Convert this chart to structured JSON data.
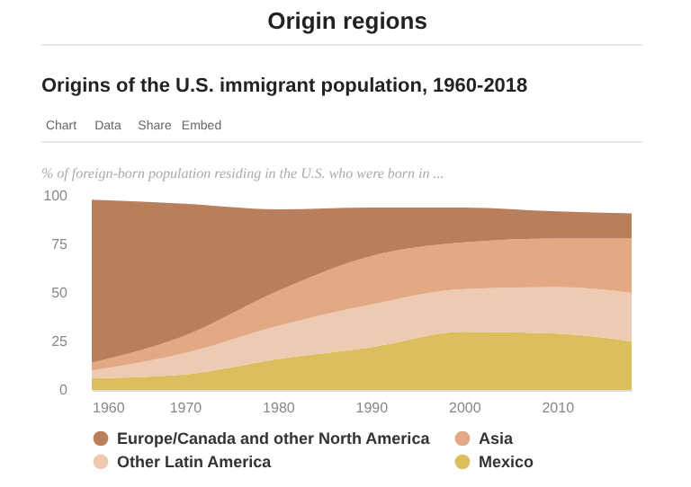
{
  "chart_data": {
    "type": "area",
    "stacked": true,
    "title": "Origins of the U.S. immigrant population, 1960-2018",
    "ylabel": "% of foreign-born population residing in the U.S. who were born in ...",
    "annotations": [
      "Origin regions",
      "Chart",
      "Data",
      "Share",
      "Embed"
    ],
    "x": [
      1960,
      1970,
      1980,
      1990,
      2000,
      2010,
      2018
    ],
    "series": [
      {
        "name": "Mexico",
        "color": "#dcbe5e",
        "values": [
          6,
          8,
          16,
          22,
          30,
          29,
          25
        ]
      },
      {
        "name": "Other Latin America",
        "color": "#efcab2",
        "values": [
          4,
          11,
          17,
          22,
          22,
          24,
          25
        ]
      },
      {
        "name": "Asia",
        "color": "#e3a884",
        "values": [
          4,
          9,
          18,
          25,
          24,
          25,
          28
        ]
      },
      {
        "name": "Europe/Canada and other North America",
        "color": "#b97e5b",
        "values": [
          84,
          68,
          42,
          25,
          18,
          14,
          13
        ]
      }
    ],
    "xlim": [
      1960,
      2018
    ],
    "xticks": [
      1960,
      1970,
      1980,
      1990,
      2000,
      2010
    ],
    "ylim": [
      0,
      100
    ],
    "yticks": [
      0,
      25,
      50,
      75,
      100
    ],
    "grid": false,
    "legend": "bottom"
  }
}
